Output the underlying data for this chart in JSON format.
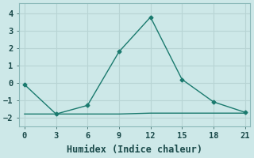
{
  "xlabel": "Humidex (Indice chaleur)",
  "ylabel": "",
  "x_main": [
    0,
    3,
    6,
    9,
    12,
    15,
    18,
    21
  ],
  "y_main": [
    -0.1,
    -1.8,
    -1.3,
    1.8,
    3.8,
    0.2,
    -1.1,
    -1.7
  ],
  "x_flat": [
    0,
    3,
    6,
    9,
    12,
    15,
    18,
    21
  ],
  "y_flat": [
    -1.8,
    -1.8,
    -1.8,
    -1.8,
    -1.75,
    -1.75,
    -1.75,
    -1.75
  ],
  "line_color": "#1a7a6e",
  "bg_color": "#cde8e8",
  "grid_color": "#b8d4d4",
  "xlim": [
    -0.5,
    21.5
  ],
  "ylim": [
    -2.5,
    4.6
  ],
  "xticks": [
    0,
    3,
    6,
    9,
    12,
    15,
    18,
    21
  ],
  "yticks": [
    -2,
    -1,
    0,
    1,
    2,
    3,
    4
  ],
  "tick_label_fontsize": 7.5,
  "xlabel_fontsize": 8.5
}
